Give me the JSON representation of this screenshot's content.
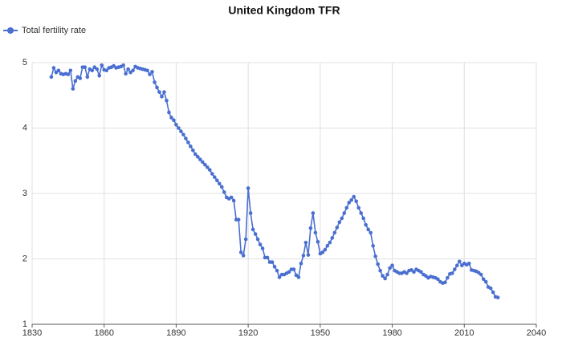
{
  "chart_data": {
    "type": "line",
    "title": "United Kingdom TFR",
    "x": [
      1838,
      1839,
      1840,
      1841,
      1842,
      1843,
      1844,
      1845,
      1846,
      1847,
      1848,
      1849,
      1850,
      1851,
      1852,
      1853,
      1854,
      1855,
      1856,
      1857,
      1858,
      1859,
      1860,
      1861,
      1862,
      1863,
      1864,
      1865,
      1866,
      1867,
      1868,
      1869,
      1870,
      1871,
      1872,
      1873,
      1874,
      1875,
      1876,
      1877,
      1878,
      1879,
      1880,
      1881,
      1882,
      1883,
      1884,
      1885,
      1886,
      1887,
      1888,
      1889,
      1890,
      1891,
      1892,
      1893,
      1894,
      1895,
      1896,
      1897,
      1898,
      1899,
      1900,
      1901,
      1902,
      1903,
      1904,
      1905,
      1906,
      1907,
      1908,
      1909,
      1910,
      1911,
      1912,
      1913,
      1914,
      1915,
      1916,
      1917,
      1918,
      1919,
      1920,
      1921,
      1922,
      1923,
      1924,
      1925,
      1926,
      1927,
      1928,
      1929,
      1930,
      1931,
      1932,
      1933,
      1934,
      1935,
      1936,
      1937,
      1938,
      1939,
      1940,
      1941,
      1942,
      1943,
      1944,
      1945,
      1946,
      1947,
      1948,
      1949,
      1950,
      1951,
      1952,
      1953,
      1954,
      1955,
      1956,
      1957,
      1958,
      1959,
      1960,
      1961,
      1962,
      1963,
      1964,
      1965,
      1966,
      1967,
      1968,
      1969,
      1970,
      1971,
      1972,
      1973,
      1974,
      1975,
      1976,
      1977,
      1978,
      1979,
      1980,
      1981,
      1982,
      1983,
      1984,
      1985,
      1986,
      1987,
      1988,
      1989,
      1990,
      1991,
      1992,
      1993,
      1994,
      1995,
      1996,
      1997,
      1998,
      1999,
      2000,
      2001,
      2002,
      2003,
      2004,
      2005,
      2006,
      2007,
      2008,
      2009,
      2010,
      2011,
      2012,
      2013,
      2014,
      2015,
      2016,
      2017,
      2018,
      2019,
      2020,
      2021,
      2022,
      2023,
      2024
    ],
    "series": [
      {
        "name": "Total fertility rate",
        "color": "#4a6fd1",
        "values": [
          4.78,
          4.92,
          4.85,
          4.88,
          4.83,
          4.82,
          4.83,
          4.82,
          4.88,
          4.6,
          4.72,
          4.78,
          4.76,
          4.93,
          4.93,
          4.78,
          4.9,
          4.88,
          4.93,
          4.9,
          4.8,
          4.96,
          4.89,
          4.88,
          4.92,
          4.93,
          4.95,
          4.92,
          4.93,
          4.94,
          4.96,
          4.83,
          4.9,
          4.85,
          4.88,
          4.94,
          4.92,
          4.91,
          4.9,
          4.89,
          4.88,
          4.82,
          4.86,
          4.7,
          4.62,
          4.55,
          4.48,
          4.55,
          4.42,
          4.24,
          4.16,
          4.12,
          4.05,
          4.0,
          3.95,
          3.9,
          3.84,
          3.78,
          3.72,
          3.66,
          3.6,
          3.56,
          3.52,
          3.48,
          3.44,
          3.4,
          3.36,
          3.3,
          3.25,
          3.2,
          3.15,
          3.1,
          3.02,
          2.94,
          2.92,
          2.94,
          2.89,
          2.6,
          2.6,
          2.1,
          2.05,
          2.3,
          3.08,
          2.7,
          2.45,
          2.38,
          2.3,
          2.22,
          2.16,
          2.02,
          2.02,
          1.95,
          1.95,
          1.88,
          1.82,
          1.72,
          1.76,
          1.76,
          1.78,
          1.8,
          1.84,
          1.84,
          1.75,
          1.72,
          1.93,
          2.05,
          2.25,
          2.06,
          2.47,
          2.7,
          2.4,
          2.26,
          2.08,
          2.1,
          2.14,
          2.2,
          2.25,
          2.32,
          2.4,
          2.48,
          2.56,
          2.62,
          2.7,
          2.78,
          2.86,
          2.9,
          2.95,
          2.88,
          2.78,
          2.7,
          2.62,
          2.52,
          2.45,
          2.4,
          2.2,
          2.04,
          1.92,
          1.82,
          1.74,
          1.7,
          1.76,
          1.86,
          1.9,
          1.82,
          1.8,
          1.78,
          1.78,
          1.8,
          1.78,
          1.82,
          1.83,
          1.8,
          1.84,
          1.82,
          1.8,
          1.76,
          1.74,
          1.71,
          1.73,
          1.72,
          1.71,
          1.69,
          1.65,
          1.63,
          1.64,
          1.71,
          1.77,
          1.78,
          1.84,
          1.9,
          1.96,
          1.9,
          1.93,
          1.91,
          1.93,
          1.83,
          1.82,
          1.81,
          1.79,
          1.76,
          1.69,
          1.65,
          1.57,
          1.55,
          1.49,
          1.42,
          1.41
        ]
      }
    ],
    "xlim": [
      1830,
      2040
    ],
    "xticks": [
      1830,
      1860,
      1890,
      1920,
      1950,
      1980,
      2010,
      2040
    ],
    "ylim": [
      1,
      5
    ],
    "yticks": [
      1,
      2,
      3,
      4,
      5
    ],
    "grid": true,
    "legend": "top-left"
  }
}
